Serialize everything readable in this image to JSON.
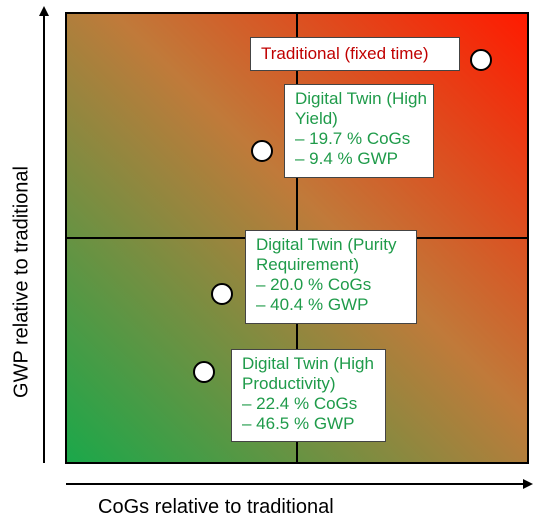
{
  "axes": {
    "x_label": "CoGs relative to traditional",
    "y_label": "GWP relative to traditional"
  },
  "colors": {
    "gradient_low": "#1aa84a",
    "gradient_mid": "#c07a3a",
    "gradient_high": "#ff1a00",
    "traditional_text": "#c00000",
    "digital_twin_text": "#1f9b4a",
    "marker_fill": "#ffffff"
  },
  "labels": {
    "traditional": "Traditional (fixed time)",
    "high_yield": {
      "title_line1": "Digital Twin (High",
      "title_line2": "Yield)",
      "cogs": "– 19.7 % CoGs",
      "gwp": "– 9.4 % GWP"
    },
    "purity": {
      "title_line1": "Digital Twin (Purity",
      "title_line2": "Requirement)",
      "cogs": "– 20.0 % CoGs",
      "gwp": "– 40.4 % GWP"
    },
    "high_productivity": {
      "title_line1": "Digital Twin (High",
      "title_line2": "Productivity)",
      "cogs": "– 22.4 % CoGs",
      "gwp": "– 46.5 % GWP"
    }
  }
}
